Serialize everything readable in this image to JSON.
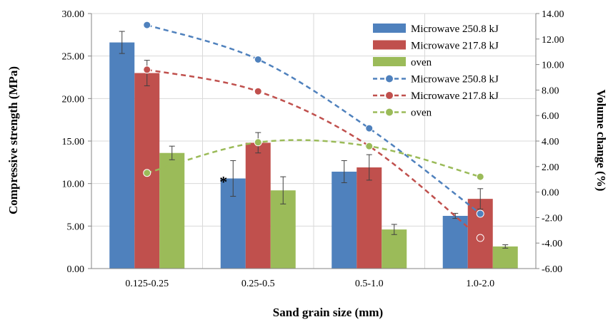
{
  "chart_data": {
    "type": "bar",
    "xlabel": "Sand grain size (mm)",
    "ylabel": "Compressive strength (MPa)",
    "y2label": "Volume change (%)",
    "categories": [
      "0.125-0.25",
      "0.25-0.5",
      "0.5-1.0",
      "1.0-2.0"
    ],
    "ylim": [
      0,
      30
    ],
    "y_ticks": [
      "0.00",
      "5.00",
      "10.00",
      "15.00",
      "20.00",
      "25.00",
      "30.00"
    ],
    "y2lim": [
      -6,
      14
    ],
    "y2_ticks": [
      "-6.00",
      "-4.00",
      "-2.00",
      "0.00",
      "2.00",
      "4.00",
      "6.00",
      "8.00",
      "10.00",
      "12.00",
      "14.00"
    ],
    "grid": true,
    "legend_position": "top-right",
    "bar_series": [
      {
        "name": "Microwave 250.8 kJ",
        "color": "#4f81bd",
        "values": [
          26.6,
          10.6,
          11.4,
          6.2
        ],
        "errors": [
          1.3,
          2.1,
          1.3,
          0.3
        ]
      },
      {
        "name": "Microwave 217.8 kJ",
        "color": "#c0504d",
        "values": [
          23.0,
          14.8,
          11.9,
          8.2
        ],
        "errors": [
          1.5,
          1.2,
          1.5,
          1.2
        ]
      },
      {
        "name": "oven",
        "color": "#9bbb59",
        "values": [
          13.6,
          9.2,
          4.6,
          2.6
        ],
        "errors": [
          0.8,
          1.6,
          0.6,
          0.2
        ]
      }
    ],
    "line_series": [
      {
        "name": "Microwave 250.8 kJ",
        "color": "#4f81bd",
        "values": [
          13.1,
          10.4,
          5.0,
          -1.7
        ]
      },
      {
        "name": "Microwave 217.8 kJ",
        "color": "#c0504d",
        "values": [
          9.6,
          7.9,
          3.6,
          -3.6
        ]
      },
      {
        "name": "oven",
        "color": "#9bbb59",
        "values": [
          1.5,
          3.9,
          3.6,
          1.2
        ]
      }
    ],
    "annotations": [
      {
        "text": "*",
        "category": "0.25-0.5",
        "series": "Microwave 250.8 kJ"
      }
    ]
  }
}
